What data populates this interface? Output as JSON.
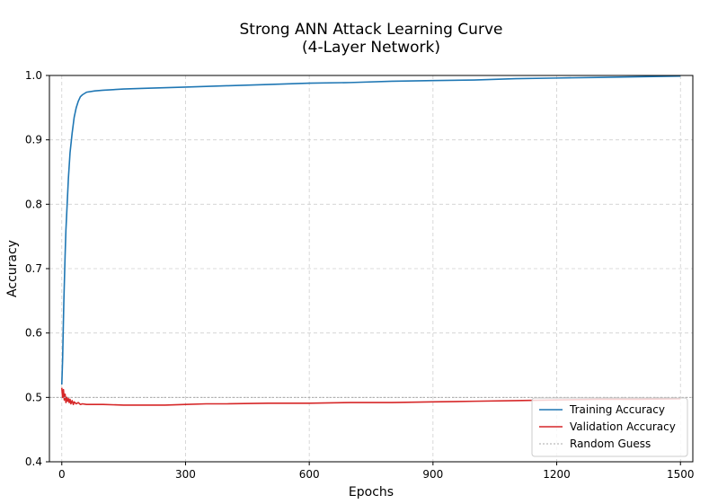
{
  "chart_data": {
    "type": "line",
    "title_lines": [
      "Strong ANN Attack Learning Curve",
      "(4-Layer Network)"
    ],
    "xlabel": "Epochs",
    "ylabel": "Accuracy",
    "xlim": [
      -30,
      1530
    ],
    "ylim": [
      0.4,
      1.0
    ],
    "x_ticks": [
      0,
      300,
      600,
      900,
      1200,
      1500
    ],
    "y_ticks": [
      0.4,
      0.5,
      0.6,
      0.7,
      0.8,
      0.9,
      1.0
    ],
    "grid": true,
    "legend_position": "lower-right",
    "series": [
      {
        "name": "Training Accuracy",
        "color": "#1f77b4",
        "style": "solid",
        "points": [
          [
            0,
            0.52
          ],
          [
            2,
            0.56
          ],
          [
            5,
            0.65
          ],
          [
            8,
            0.72
          ],
          [
            10,
            0.76
          ],
          [
            13,
            0.8
          ],
          [
            16,
            0.84
          ],
          [
            20,
            0.88
          ],
          [
            25,
            0.91
          ],
          [
            30,
            0.935
          ],
          [
            35,
            0.95
          ],
          [
            40,
            0.96
          ],
          [
            45,
            0.967
          ],
          [
            50,
            0.97
          ],
          [
            60,
            0.974
          ],
          [
            80,
            0.976
          ],
          [
            100,
            0.977
          ],
          [
            150,
            0.979
          ],
          [
            200,
            0.98
          ],
          [
            300,
            0.982
          ],
          [
            400,
            0.984
          ],
          [
            500,
            0.986
          ],
          [
            600,
            0.988
          ],
          [
            700,
            0.989
          ],
          [
            800,
            0.991
          ],
          [
            900,
            0.992
          ],
          [
            1000,
            0.993
          ],
          [
            1100,
            0.995
          ],
          [
            1200,
            0.996
          ],
          [
            1300,
            0.997
          ],
          [
            1400,
            0.998
          ],
          [
            1500,
            0.999
          ]
        ]
      },
      {
        "name": "Validation Accuracy",
        "color": "#d62728",
        "style": "solid",
        "points": [
          [
            0,
            0.515
          ],
          [
            2,
            0.5
          ],
          [
            4,
            0.512
          ],
          [
            6,
            0.496
          ],
          [
            8,
            0.505
          ],
          [
            10,
            0.492
          ],
          [
            12,
            0.5
          ],
          [
            14,
            0.494
          ],
          [
            16,
            0.498
          ],
          [
            18,
            0.492
          ],
          [
            20,
            0.497
          ],
          [
            22,
            0.49
          ],
          [
            25,
            0.495
          ],
          [
            28,
            0.489
          ],
          [
            30,
            0.493
          ],
          [
            35,
            0.49
          ],
          [
            40,
            0.492
          ],
          [
            45,
            0.489
          ],
          [
            50,
            0.49
          ],
          [
            60,
            0.489
          ],
          [
            80,
            0.489
          ],
          [
            100,
            0.489
          ],
          [
            150,
            0.488
          ],
          [
            200,
            0.488
          ],
          [
            250,
            0.488
          ],
          [
            300,
            0.489
          ],
          [
            350,
            0.49
          ],
          [
            400,
            0.49
          ],
          [
            500,
            0.491
          ],
          [
            600,
            0.491
          ],
          [
            700,
            0.492
          ],
          [
            800,
            0.492
          ],
          [
            900,
            0.493
          ],
          [
            1000,
            0.494
          ],
          [
            1100,
            0.495
          ],
          [
            1200,
            0.496
          ],
          [
            1300,
            0.497
          ],
          [
            1400,
            0.497
          ],
          [
            1500,
            0.498
          ]
        ]
      },
      {
        "name": "Random Guess",
        "color": "#aaaaaa",
        "style": "dotted",
        "points": [
          [
            -30,
            0.5
          ],
          [
            1530,
            0.5
          ]
        ]
      }
    ]
  }
}
